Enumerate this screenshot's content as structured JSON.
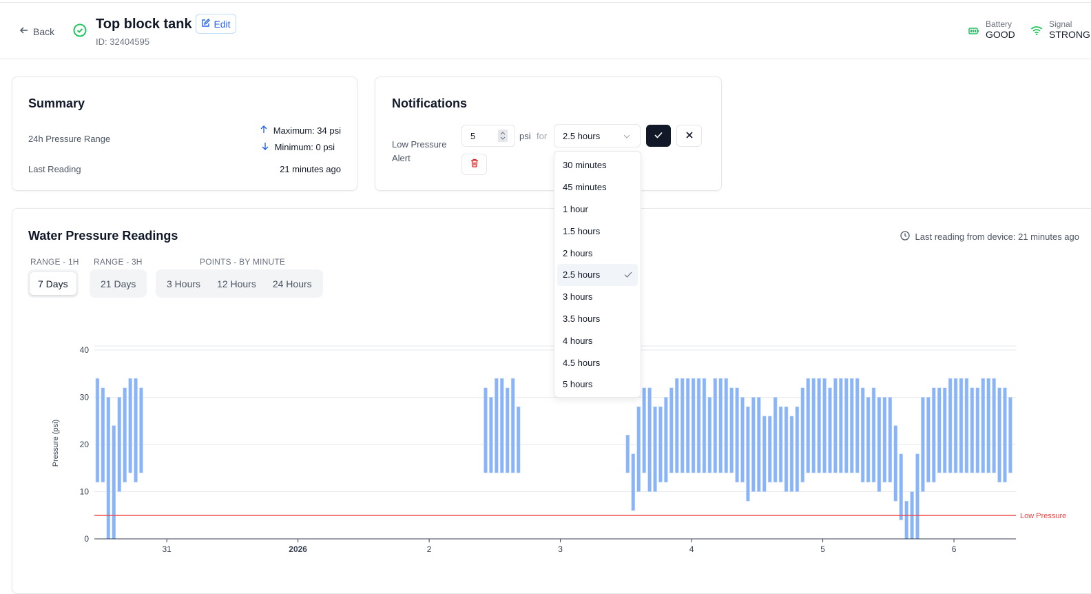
{
  "header": {
    "back_label": "Back",
    "title": "Top block tank",
    "device_id": "ID: 32404595",
    "edit_label": "Edit",
    "battery_label": "Battery",
    "battery_value": "GOOD",
    "signal_label": "Signal",
    "signal_value": "STRONG"
  },
  "summary": {
    "title": "Summary",
    "range_label": "24h Pressure Range",
    "maximum": "Maximum: 34 psi",
    "minimum": "Minimum: 0 psi",
    "last_reading_label": "Last Reading",
    "last_reading_value": "21 minutes ago"
  },
  "notifications": {
    "title": "Notifications",
    "alert_label": "Low Pressure Alert",
    "threshold_value": "5",
    "unit": "psi",
    "for_label": "for",
    "duration_selected": "2.5 hours",
    "duration_options": [
      "30 minutes",
      "45 minutes",
      "1 hour",
      "1.5 hours",
      "2 hours",
      "2.5 hours",
      "3 hours",
      "3.5 hours",
      "4 hours",
      "4.5 hours",
      "5 hours"
    ]
  },
  "readings": {
    "title": "Water Pressure Readings",
    "last_reading": "Last reading from device: 21 minutes ago",
    "groups": [
      {
        "label": "RANGE - 1H",
        "buttons": [
          "7 Days"
        ],
        "active": "7 Days"
      },
      {
        "label": "RANGE - 3H",
        "buttons": [
          "21 Days"
        ]
      },
      {
        "label": "POINTS - BY MINUTE",
        "buttons": [
          "3 Hours",
          "12 Hours",
          "24 Hours"
        ]
      }
    ]
  },
  "colors": {
    "bar": "#8ab4f8",
    "threshold": "#ef4444",
    "accent": "#2563eb",
    "ok": "#22c55e"
  },
  "chart_data": {
    "type": "bar",
    "subtype": "floating-range",
    "ylabel": "Pressure (psi)",
    "ylim": [
      0,
      40
    ],
    "yticks": [
      0,
      10,
      20,
      30,
      40
    ],
    "xlim": [
      "2025-12-30T10:45",
      "2026-01-06T11:20"
    ],
    "xticks": [
      {
        "t": "2025-12-31T00:00",
        "label": "31"
      },
      {
        "t": "2026-01-01T00:00",
        "label": "2026",
        "bold": true
      },
      {
        "t": "2026-01-02T00:00",
        "label": "2"
      },
      {
        "t": "2026-01-03T00:00",
        "label": "3"
      },
      {
        "t": "2026-01-04T00:00",
        "label": "4"
      },
      {
        "t": "2026-01-05T00:00",
        "label": "5"
      },
      {
        "t": "2026-01-06T00:00",
        "label": "6"
      }
    ],
    "grid": true,
    "threshold": {
      "value": 5,
      "label": "Low Pressure"
    },
    "segments": [
      {
        "start": "2025-12-30T11:00",
        "interval_hours": 1,
        "ranges": [
          [
            12,
            34
          ],
          [
            12,
            32
          ],
          [
            0,
            30
          ],
          [
            0,
            24
          ],
          [
            10,
            30
          ],
          [
            12,
            32
          ],
          [
            14,
            34
          ],
          [
            12,
            34
          ],
          [
            14,
            32
          ]
        ]
      },
      {
        "start": "2026-01-02T10:00",
        "interval_hours": 1,
        "ranges": [
          [
            14,
            32
          ],
          [
            14,
            30
          ],
          [
            14,
            34
          ],
          [
            14,
            34
          ],
          [
            14,
            32
          ],
          [
            14,
            34
          ],
          [
            14,
            28
          ]
        ]
      },
      {
        "start": "2026-01-03T12:00",
        "interval_hours": 1,
        "ranges": [
          [
            14,
            22
          ],
          [
            6,
            18
          ],
          [
            10,
            28
          ],
          [
            14,
            32
          ],
          [
            10,
            32
          ],
          [
            10,
            28
          ],
          [
            12,
            28
          ],
          [
            12,
            30
          ],
          [
            14,
            32
          ],
          [
            14,
            34
          ],
          [
            14,
            34
          ],
          [
            14,
            34
          ],
          [
            14,
            34
          ],
          [
            14,
            34
          ],
          [
            14,
            34
          ],
          [
            14,
            30
          ],
          [
            14,
            34
          ],
          [
            14,
            34
          ],
          [
            14,
            34
          ],
          [
            14,
            32
          ],
          [
            12,
            32
          ],
          [
            12,
            30
          ],
          [
            8,
            28
          ],
          [
            10,
            30
          ],
          [
            10,
            30
          ],
          [
            10,
            26
          ],
          [
            12,
            26
          ],
          [
            12,
            30
          ],
          [
            12,
            28
          ],
          [
            10,
            28
          ],
          [
            10,
            26
          ],
          [
            10,
            28
          ],
          [
            12,
            32
          ],
          [
            14,
            34
          ],
          [
            14,
            34
          ],
          [
            14,
            34
          ],
          [
            14,
            34
          ],
          [
            14,
            32
          ],
          [
            14,
            34
          ],
          [
            14,
            34
          ],
          [
            14,
            34
          ],
          [
            14,
            34
          ],
          [
            14,
            34
          ],
          [
            12,
            32
          ],
          [
            12,
            30
          ],
          [
            12,
            32
          ],
          [
            10,
            30
          ],
          [
            12,
            30
          ],
          [
            12,
            30
          ],
          [
            8,
            24
          ],
          [
            4,
            18
          ],
          [
            0,
            8
          ],
          [
            0,
            10
          ],
          [
            0,
            18
          ],
          [
            10,
            30
          ],
          [
            12,
            30
          ],
          [
            12,
            32
          ],
          [
            14,
            32
          ],
          [
            14,
            32
          ],
          [
            14,
            34
          ],
          [
            14,
            34
          ],
          [
            14,
            34
          ],
          [
            14,
            34
          ],
          [
            14,
            32
          ],
          [
            14,
            32
          ],
          [
            14,
            34
          ],
          [
            14,
            34
          ],
          [
            14,
            34
          ],
          [
            12,
            32
          ],
          [
            12,
            32
          ],
          [
            14,
            30
          ]
        ]
      }
    ]
  }
}
